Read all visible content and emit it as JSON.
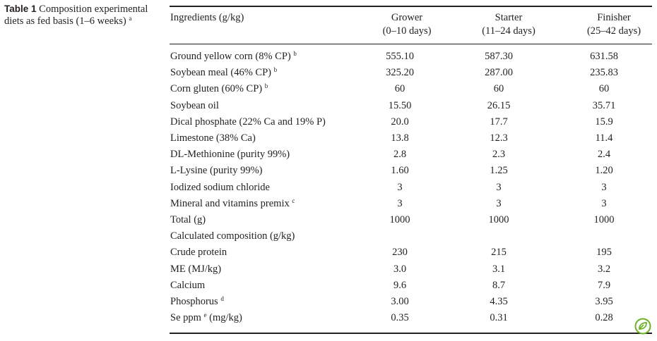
{
  "caption": {
    "label": "Table 1",
    "text": "Composition experimental diets as fed basis (1–6 weeks)",
    "footnote": "a"
  },
  "header": {
    "ingredients": "Ingredients (g/kg)",
    "columns": [
      {
        "name": "Grower",
        "period": "(0–10 days)"
      },
      {
        "name": "Starter",
        "period": "(11–24 days)"
      },
      {
        "name": "Finisher",
        "period": "(25–42 days)"
      }
    ]
  },
  "rows": [
    {
      "label": "Ground yellow corn (8% CP)",
      "sup": "b",
      "values": [
        "555.10",
        "587.30",
        "631.58"
      ]
    },
    {
      "label": "Soybean meal (46% CP)",
      "sup": "b",
      "values": [
        "325.20",
        "287.00",
        "235.83"
      ]
    },
    {
      "label": "Corn gluten (60% CP)",
      "sup": "b",
      "values": [
        "60",
        "60",
        "60"
      ]
    },
    {
      "label": "Soybean oil",
      "sup": "",
      "values": [
        "15.50",
        "26.15",
        "35.71"
      ]
    },
    {
      "label": "Dical phosphate (22% Ca and 19% P)",
      "sup": "",
      "values": [
        "20.0",
        "17.7",
        "15.9"
      ]
    },
    {
      "label": "Limestone (38% Ca)",
      "sup": "",
      "values": [
        "13.8",
        "12.3",
        "11.4"
      ]
    },
    {
      "label": "DL-Methionine (purity 99%)",
      "sup": "",
      "values": [
        "2.8",
        "2.3",
        "2.4"
      ]
    },
    {
      "label": "L-Lysine (purity 99%)",
      "sup": "",
      "values": [
        "1.60",
        "1.25",
        "1.20"
      ]
    },
    {
      "label": "Iodized sodium chloride",
      "sup": "",
      "values": [
        "3",
        "3",
        "3"
      ]
    },
    {
      "label": "Mineral and vitamins premix",
      "sup": "c",
      "values": [
        "3",
        "3",
        "3"
      ]
    },
    {
      "label": "Total (g)",
      "sup": "",
      "values": [
        "1000",
        "1000",
        "1000"
      ]
    },
    {
      "label": "Calculated composition (g/kg)",
      "sup": "",
      "values": [
        "",
        "",
        ""
      ]
    },
    {
      "label": "Crude protein",
      "sup": "",
      "values": [
        "230",
        "215",
        "195"
      ]
    },
    {
      "label": "ME (MJ/kg)",
      "sup": "",
      "values": [
        "3.0",
        "3.1",
        "3.2"
      ]
    },
    {
      "label": "Calcium",
      "sup": "",
      "values": [
        "9.6",
        "8.7",
        "7.9"
      ]
    },
    {
      "label": "Phosphorus",
      "sup": "d",
      "values": [
        "3.00",
        "4.35",
        "3.95"
      ]
    },
    {
      "label": "Se ppm",
      "sup": "e",
      "label_suffix": "(mg/kg)",
      "values": [
        "0.35",
        "0.31",
        "0.28"
      ]
    }
  ],
  "badge": {
    "icon": "leaf-badge-icon",
    "color": "#6ab023"
  }
}
